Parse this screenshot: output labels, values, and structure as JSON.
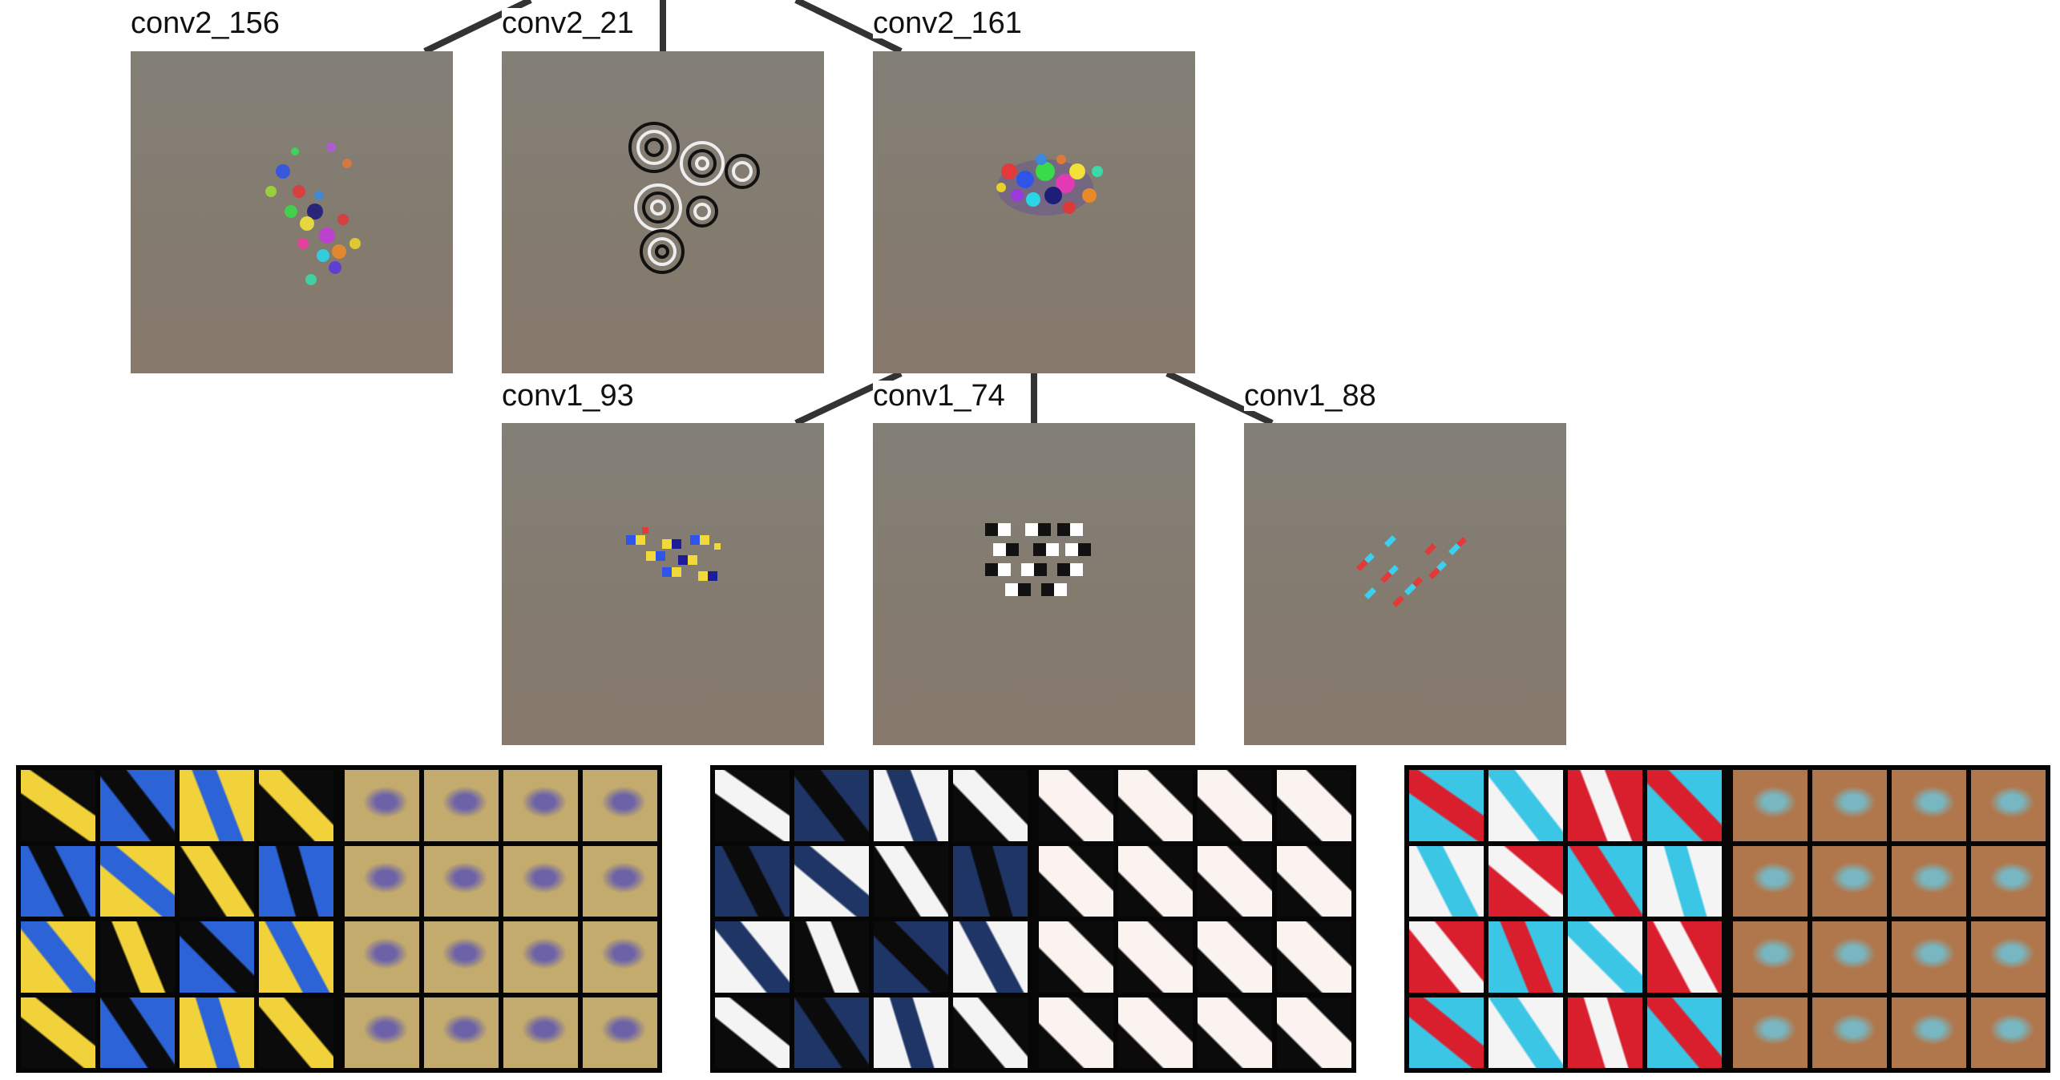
{
  "nodes": [
    {
      "id": "conv2_156",
      "label": "conv2_156",
      "layer": "conv2"
    },
    {
      "id": "conv2_21",
      "label": "conv2_21",
      "layer": "conv2"
    },
    {
      "id": "conv2_161",
      "label": "conv2_161",
      "layer": "conv2"
    },
    {
      "id": "conv1_93",
      "label": "conv1_93",
      "layer": "conv1"
    },
    {
      "id": "conv1_74",
      "label": "conv1_74",
      "layer": "conv1"
    },
    {
      "id": "conv1_88",
      "label": "conv1_88",
      "layer": "conv1"
    }
  ],
  "edges": [
    {
      "from": "conv2_161",
      "to": "conv1_93"
    },
    {
      "from": "conv2_161",
      "to": "conv1_74"
    },
    {
      "from": "conv2_161",
      "to": "conv1_88"
    }
  ],
  "patch_strips": [
    {
      "node": "conv1_93",
      "left_colors": [
        "#f2d23a",
        "#0b0b0b",
        "#2c63d6"
      ],
      "right_colors": [
        "#c2ab6d",
        "#6d62a8"
      ]
    },
    {
      "node": "conv1_74",
      "left_colors": [
        "#f4f4f4",
        "#0b0b0b",
        "#1e3566"
      ],
      "right_colors": [
        "#fbf3f0",
        "#0b0b0b"
      ]
    },
    {
      "node": "conv1_88",
      "left_colors": [
        "#d91f2e",
        "#3cc6e6",
        "#f4f4f4"
      ],
      "right_colors": [
        "#b0774d",
        "#78b7c2"
      ]
    }
  ],
  "colors": {
    "tile_background": "#847c71",
    "edge_stroke": "#333333",
    "strip_background": "#060606"
  }
}
